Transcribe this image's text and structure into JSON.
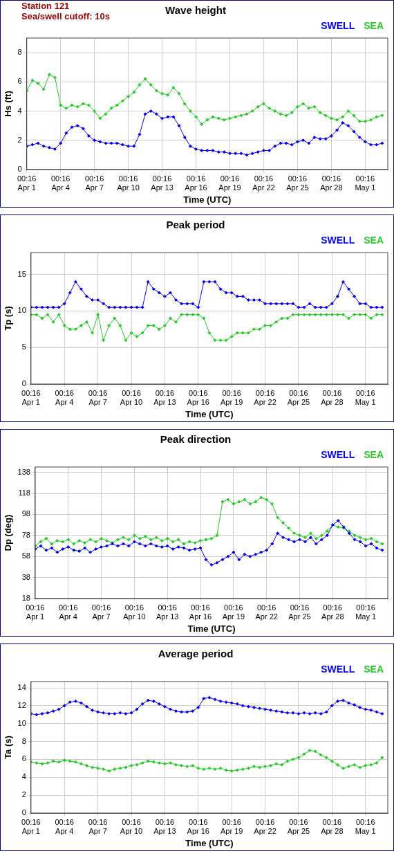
{
  "chart_data": [
    {
      "type": "line",
      "title": "Wave height",
      "annotations": [
        "Station 121",
        "Sea/swell cutoff: 10s"
      ],
      "xlabel": "Time (UTC)",
      "ylabel": "Hs (ft)",
      "x": [
        0,
        0.5,
        1,
        1.5,
        2,
        2.5,
        3,
        3.5,
        4,
        4.5,
        5,
        5.5,
        6,
        6.5,
        7,
        7.5,
        8,
        8.5,
        9,
        9.5,
        10,
        10.5,
        11,
        11.5,
        12,
        12.5,
        13,
        13.5,
        14,
        14.5,
        15,
        15.5,
        16,
        16.5,
        17,
        17.5,
        18,
        18.5,
        19,
        19.5,
        20,
        20.5,
        21,
        21.5,
        22,
        22.5,
        23,
        23.5,
        24,
        24.5,
        25,
        25.5,
        26,
        26.5,
        27,
        27.5,
        28,
        28.5,
        29,
        29.5,
        30,
        30.5,
        31,
        31.5
      ],
      "series": [
        {
          "name": "SWELL",
          "color": "#0000ee",
          "values": [
            1.6,
            1.7,
            1.8,
            1.6,
            1.5,
            1.4,
            1.8,
            2.5,
            2.9,
            3.0,
            2.8,
            2.3,
            2.0,
            1.9,
            1.8,
            1.8,
            1.8,
            1.7,
            1.6,
            1.6,
            2.4,
            3.8,
            4.0,
            3.8,
            3.5,
            3.6,
            3.6,
            3.0,
            2.2,
            1.6,
            1.4,
            1.3,
            1.3,
            1.3,
            1.2,
            1.2,
            1.1,
            1.1,
            1.1,
            1.0,
            1.1,
            1.2,
            1.3,
            1.3,
            1.6,
            1.8,
            1.8,
            1.7,
            1.9,
            2.0,
            1.8,
            2.2,
            2.1,
            2.1,
            2.3,
            2.7,
            3.2,
            3.0,
            2.6,
            2.2,
            1.9,
            1.7,
            1.7,
            1.8
          ]
        },
        {
          "name": "SEA",
          "color": "#22cc22",
          "values": [
            5.4,
            6.1,
            5.9,
            5.5,
            6.5,
            6.3,
            4.4,
            4.2,
            4.4,
            4.3,
            4.5,
            4.4,
            4.0,
            3.5,
            3.8,
            4.2,
            4.4,
            4.7,
            5.0,
            5.3,
            5.8,
            6.2,
            5.8,
            5.4,
            5.2,
            5.1,
            5.6,
            5.2,
            4.5,
            4.0,
            3.6,
            3.1,
            3.4,
            3.6,
            3.5,
            3.4,
            3.5,
            3.6,
            3.7,
            3.8,
            4.0,
            4.3,
            4.5,
            4.2,
            4.0,
            3.8,
            3.7,
            3.9,
            4.3,
            4.5,
            4.2,
            4.3,
            3.9,
            3.7,
            3.5,
            3.4,
            3.6,
            4.0,
            3.7,
            3.3,
            3.3,
            3.4,
            3.6,
            3.7
          ]
        }
      ],
      "xlim": [
        0,
        32
      ],
      "xticks": [
        {
          "value": 0,
          "label": "00:16 Apr 1"
        },
        {
          "value": 3,
          "label": "00:16 Apr 4"
        },
        {
          "value": 6,
          "label": "00:16 Apr 7"
        },
        {
          "value": 9,
          "label": "00:16 Apr 10"
        },
        {
          "value": 12,
          "label": "00:16 Apr 13"
        },
        {
          "value": 15,
          "label": "00:16 Apr 16"
        },
        {
          "value": 18,
          "label": "00:16 Apr 19"
        },
        {
          "value": 21,
          "label": "00:16 Apr 22"
        },
        {
          "value": 24,
          "label": "00:16 Apr 25"
        },
        {
          "value": 27,
          "label": "00:16 Apr 28"
        },
        {
          "value": 30,
          "label": "00:16 May 1"
        }
      ],
      "ylim": [
        0,
        9
      ],
      "yticks": [
        0,
        2,
        4,
        6,
        8
      ],
      "grid": true,
      "legend": "top right",
      "marker": "diamond"
    },
    {
      "type": "line",
      "title": "Peak period",
      "xlabel": "Time (UTC)",
      "ylabel": "Tp (s)",
      "x": [
        0,
        0.5,
        1,
        1.5,
        2,
        2.5,
        3,
        3.5,
        4,
        4.5,
        5,
        5.5,
        6,
        6.5,
        7,
        7.5,
        8,
        8.5,
        9,
        9.5,
        10,
        10.5,
        11,
        11.5,
        12,
        12.5,
        13,
        13.5,
        14,
        14.5,
        15,
        15.5,
        16,
        16.5,
        17,
        17.5,
        18,
        18.5,
        19,
        19.5,
        20,
        20.5,
        21,
        21.5,
        22,
        22.5,
        23,
        23.5,
        24,
        24.5,
        25,
        25.5,
        26,
        26.5,
        27,
        27.5,
        28,
        28.5,
        29,
        29.5,
        30,
        30.5,
        31,
        31.5
      ],
      "series": [
        {
          "name": "SWELL",
          "color": "#0000ee",
          "values": [
            10.5,
            10.5,
            10.5,
            10.5,
            10.5,
            10.5,
            11,
            12.5,
            14,
            13,
            12,
            11.5,
            11.5,
            11,
            10.5,
            10.5,
            10.5,
            10.5,
            10.5,
            10.5,
            10.5,
            14,
            13,
            12.5,
            12,
            12.5,
            11.5,
            11,
            11,
            11,
            10.5,
            14,
            14,
            14,
            13,
            12.5,
            12.5,
            12,
            12,
            11.5,
            11.5,
            11.5,
            11,
            11,
            11,
            11,
            11,
            11,
            10.5,
            10.5,
            11,
            10.5,
            10.5,
            10.5,
            11,
            12,
            14,
            13,
            12,
            11,
            11,
            10.5,
            10.5,
            10.5
          ]
        },
        {
          "name": "SEA",
          "color": "#22cc22",
          "values": [
            9.5,
            9.5,
            9,
            9.5,
            8.5,
            9.5,
            8,
            7.5,
            7.5,
            8,
            8.5,
            7,
            9.5,
            6,
            8,
            9,
            8,
            6,
            7,
            6.5,
            7,
            8,
            8,
            7.5,
            8,
            9,
            8.5,
            9.5,
            9.5,
            9.5,
            9.5,
            9,
            7,
            6,
            6,
            6,
            6.5,
            7,
            7,
            7,
            7.5,
            7.5,
            8,
            8,
            8.5,
            9,
            9,
            9.5,
            9.5,
            9.5,
            9.5,
            9.5,
            9.5,
            9.5,
            9.5,
            9.5,
            9.5,
            9,
            9.5,
            9.5,
            9.5,
            9,
            9.5,
            9.5
          ]
        }
      ],
      "xlim": [
        0,
        32
      ],
      "xticks": [
        {
          "value": 0,
          "label": "00:16 Apr 1"
        },
        {
          "value": 3,
          "label": "00:16 Apr 4"
        },
        {
          "value": 6,
          "label": "00:16 Apr 7"
        },
        {
          "value": 9,
          "label": "00:16 Apr 10"
        },
        {
          "value": 12,
          "label": "00:16 Apr 13"
        },
        {
          "value": 15,
          "label": "00:16 Apr 16"
        },
        {
          "value": 18,
          "label": "00:16 Apr 19"
        },
        {
          "value": 21,
          "label": "00:16 Apr 22"
        },
        {
          "value": 24,
          "label": "00:16 Apr 25"
        },
        {
          "value": 27,
          "label": "00:16 Apr 28"
        },
        {
          "value": 30,
          "label": "00:16 May 1"
        }
      ],
      "ylim": [
        0,
        18
      ],
      "yticks": [
        0,
        5,
        10,
        15
      ],
      "grid": true,
      "legend": "top right",
      "marker": "diamond"
    },
    {
      "type": "line",
      "title": "Peak direction",
      "xlabel": "Time (UTC)",
      "ylabel": "Dp (deg)",
      "x": [
        0,
        0.5,
        1,
        1.5,
        2,
        2.5,
        3,
        3.5,
        4,
        4.5,
        5,
        5.5,
        6,
        6.5,
        7,
        7.5,
        8,
        8.5,
        9,
        9.5,
        10,
        10.5,
        11,
        11.5,
        12,
        12.5,
        13,
        13.5,
        14,
        14.5,
        15,
        15.5,
        16,
        16.5,
        17,
        17.5,
        18,
        18.5,
        19,
        19.5,
        20,
        20.5,
        21,
        21.5,
        22,
        22.5,
        23,
        23.5,
        24,
        24.5,
        25,
        25.5,
        26,
        26.5,
        27,
        27.5,
        28,
        28.5,
        29,
        29.5,
        30,
        30.5,
        31,
        31.5
      ],
      "series": [
        {
          "name": "SWELL",
          "color": "#0000ee",
          "values": [
            65,
            68,
            64,
            66,
            62,
            65,
            67,
            64,
            63,
            66,
            62,
            65,
            67,
            68,
            70,
            68,
            70,
            68,
            72,
            70,
            68,
            70,
            68,
            67,
            68,
            65,
            67,
            66,
            64,
            65,
            66,
            55,
            50,
            52,
            55,
            58,
            62,
            55,
            60,
            58,
            60,
            62,
            64,
            70,
            80,
            76,
            74,
            72,
            74,
            72,
            76,
            70,
            74,
            78,
            88,
            92,
            86,
            80,
            74,
            72,
            68,
            70,
            66,
            64
          ]
        },
        {
          "name": "SEA",
          "color": "#22cc22",
          "values": [
            68,
            72,
            75,
            70,
            73,
            72,
            74,
            70,
            73,
            71,
            74,
            72,
            75,
            73,
            71,
            74,
            76,
            74,
            78,
            75,
            77,
            74,
            76,
            73,
            75,
            72,
            74,
            70,
            72,
            71,
            73,
            74,
            75,
            78,
            110,
            112,
            108,
            110,
            112,
            108,
            110,
            114,
            112,
            108,
            95,
            90,
            85,
            80,
            78,
            76,
            80,
            75,
            78,
            82,
            88,
            86,
            85,
            82,
            78,
            76,
            74,
            75,
            72,
            70
          ]
        }
      ],
      "xlim": [
        0,
        32
      ],
      "xticks": [
        {
          "value": 0,
          "label": "00:16 Apr 1"
        },
        {
          "value": 3,
          "label": "00:16 Apr 4"
        },
        {
          "value": 6,
          "label": "00:16 Apr 7"
        },
        {
          "value": 9,
          "label": "00:16 Apr 10"
        },
        {
          "value": 12,
          "label": "00:16 Apr 13"
        },
        {
          "value": 15,
          "label": "00:16 Apr 16"
        },
        {
          "value": 18,
          "label": "00:16 Apr 19"
        },
        {
          "value": 21,
          "label": "00:16 Apr 22"
        },
        {
          "value": 24,
          "label": "00:16 Apr 25"
        },
        {
          "value": 27,
          "label": "00:16 Apr 28"
        },
        {
          "value": 30,
          "label": "00:16 May 1"
        }
      ],
      "ylim": [
        18,
        143
      ],
      "yticks": [
        18,
        38,
        58,
        78,
        98,
        118,
        138
      ],
      "grid": true,
      "legend": "top right",
      "marker": "diamond"
    },
    {
      "type": "line",
      "title": "Average period",
      "xlabel": "Time (UTC)",
      "ylabel": "Ta (s)",
      "x": [
        0,
        0.5,
        1,
        1.5,
        2,
        2.5,
        3,
        3.5,
        4,
        4.5,
        5,
        5.5,
        6,
        6.5,
        7,
        7.5,
        8,
        8.5,
        9,
        9.5,
        10,
        10.5,
        11,
        11.5,
        12,
        12.5,
        13,
        13.5,
        14,
        14.5,
        15,
        15.5,
        16,
        16.5,
        17,
        17.5,
        18,
        18.5,
        19,
        19.5,
        20,
        20.5,
        21,
        21.5,
        22,
        22.5,
        23,
        23.5,
        24,
        24.5,
        25,
        25.5,
        26,
        26.5,
        27,
        27.5,
        28,
        28.5,
        29,
        29.5,
        30,
        30.5,
        31,
        31.5
      ],
      "series": [
        {
          "name": "SWELL",
          "color": "#0000ee",
          "values": [
            11.1,
            11.0,
            11.1,
            11.2,
            11.4,
            11.6,
            12.0,
            12.4,
            12.5,
            12.3,
            11.9,
            11.5,
            11.3,
            11.2,
            11.1,
            11.1,
            11.2,
            11.1,
            11.2,
            11.6,
            12.2,
            12.6,
            12.5,
            12.2,
            11.9,
            11.6,
            11.4,
            11.3,
            11.3,
            11.4,
            11.8,
            12.8,
            12.9,
            12.7,
            12.5,
            12.4,
            12.3,
            12.2,
            12.0,
            11.9,
            11.8,
            11.7,
            11.6,
            11.5,
            11.4,
            11.3,
            11.2,
            11.2,
            11.1,
            11.2,
            11.1,
            11.2,
            11.1,
            11.3,
            12.0,
            12.5,
            12.6,
            12.3,
            12.1,
            11.8,
            11.6,
            11.5,
            11.3,
            11.1
          ]
        },
        {
          "name": "SEA",
          "color": "#22cc22",
          "values": [
            5.7,
            5.6,
            5.5,
            5.6,
            5.8,
            5.7,
            5.9,
            5.8,
            5.7,
            5.5,
            5.3,
            5.1,
            5.0,
            4.9,
            4.7,
            4.9,
            5.0,
            5.1,
            5.3,
            5.4,
            5.6,
            5.8,
            5.7,
            5.6,
            5.5,
            5.6,
            5.4,
            5.3,
            5.2,
            5.3,
            5.0,
            4.9,
            5.0,
            4.9,
            5.0,
            4.8,
            4.7,
            4.8,
            4.9,
            5.0,
            5.2,
            5.1,
            5.2,
            5.3,
            5.5,
            5.4,
            5.8,
            6.0,
            6.2,
            6.6,
            7.0,
            6.9,
            6.5,
            6.2,
            5.8,
            5.4,
            5.0,
            5.2,
            5.4,
            5.1,
            5.3,
            5.4,
            5.6,
            6.2
          ]
        }
      ],
      "xlim": [
        0,
        32
      ],
      "xticks": [
        {
          "value": 0,
          "label": "00:16 Apr 1"
        },
        {
          "value": 3,
          "label": "00:16 Apr 4"
        },
        {
          "value": 6,
          "label": "00:16 Apr 7"
        },
        {
          "value": 9,
          "label": "00:16 Apr 10"
        },
        {
          "value": 12,
          "label": "00:16 Apr 13"
        },
        {
          "value": 15,
          "label": "00:16 Apr 16"
        },
        {
          "value": 18,
          "label": "00:16 Apr 19"
        },
        {
          "value": 21,
          "label": "00:16 Apr 22"
        },
        {
          "value": 24,
          "label": "00:16 Apr 25"
        },
        {
          "value": 27,
          "label": "00:16 Apr 28"
        },
        {
          "value": 30,
          "label": "00:16 May 1"
        }
      ],
      "ylim": [
        0,
        14.7
      ],
      "yticks": [
        0,
        2,
        4,
        6,
        8,
        10,
        12,
        14
      ],
      "grid": true,
      "legend": "top right",
      "marker": "diamond"
    }
  ]
}
